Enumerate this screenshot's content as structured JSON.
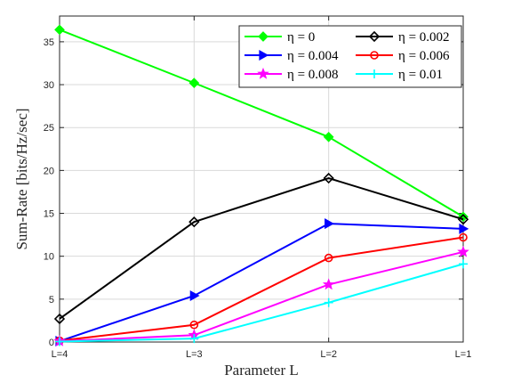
{
  "chart_data": {
    "type": "line",
    "title": "",
    "xlabel": "Parameter L",
    "ylabel": "Sum-Rate [bits/Hz/sec]",
    "categories": [
      "L=4",
      "L=3",
      "L=2",
      "L=1"
    ],
    "ylim": [
      0,
      38
    ],
    "yticks": [
      0,
      5,
      10,
      15,
      20,
      25,
      30,
      35
    ],
    "grid": true,
    "legend_position": "top-right",
    "series": [
      {
        "name": "η = 0",
        "color": "#00ff00",
        "marker": "diamond-filled",
        "values": [
          36.4,
          30.2,
          23.9,
          14.6
        ]
      },
      {
        "name": "η = 0.002",
        "color": "#000000",
        "marker": "diamond-open",
        "values": [
          2.7,
          14.0,
          19.1,
          14.3
        ]
      },
      {
        "name": "η = 0.004",
        "color": "#0000ff",
        "marker": "triangle-right",
        "values": [
          0.1,
          5.4,
          13.8,
          13.2
        ]
      },
      {
        "name": "η = 0.006",
        "color": "#ff0000",
        "marker": "circle-open",
        "values": [
          0.15,
          2.0,
          9.8,
          12.2
        ]
      },
      {
        "name": "η = 0.008",
        "color": "#ff00ff",
        "marker": "star",
        "values": [
          0.1,
          0.8,
          6.7,
          10.5
        ]
      },
      {
        "name": "η = 0.01",
        "color": "#00ffff",
        "marker": "plus",
        "values": [
          0.05,
          0.4,
          4.6,
          9.1
        ]
      }
    ]
  }
}
